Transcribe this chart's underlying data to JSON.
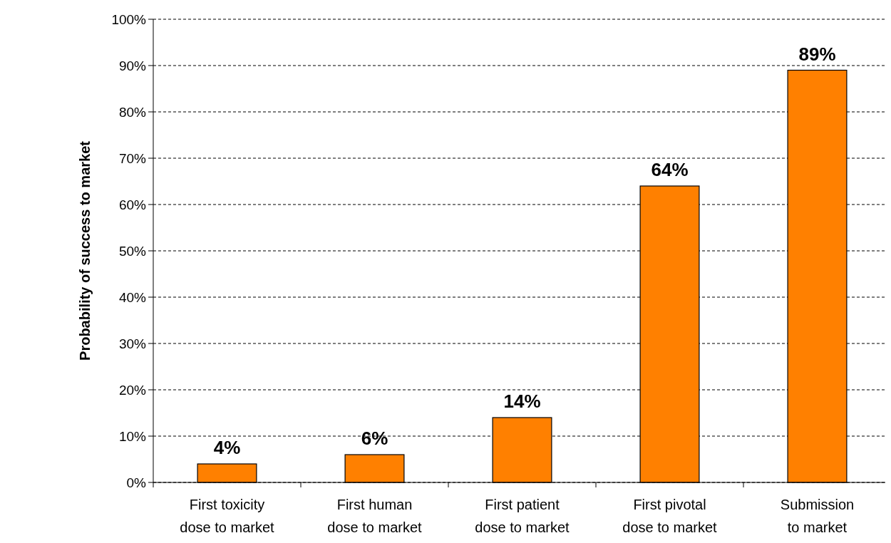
{
  "chart_data": {
    "type": "bar",
    "ylabel": "Probability of success to market",
    "categories": [
      "First toxicity\ndose to market",
      "First human\ndose to market",
      "First patient\ndose to market",
      "First pivotal\ndose to market",
      "Submission\nto market"
    ],
    "values": [
      4,
      6,
      14,
      64,
      89
    ],
    "value_labels": [
      "4%",
      "6%",
      "14%",
      "64%",
      "89%"
    ],
    "color": "#ff8000",
    "ylim": [
      0,
      100
    ],
    "yticks": [
      {
        "value": 0,
        "label": "0%"
      },
      {
        "value": 10,
        "label": "10%"
      },
      {
        "value": 20,
        "label": "20%"
      },
      {
        "value": 30,
        "label": "30%"
      },
      {
        "value": 40,
        "label": "40%"
      },
      {
        "value": 50,
        "label": "50%"
      },
      {
        "value": 60,
        "label": "60%"
      },
      {
        "value": 70,
        "label": "70%"
      },
      {
        "value": 80,
        "label": "80%"
      },
      {
        "value": 90,
        "label": "90%"
      },
      {
        "value": 100,
        "label": "100%"
      }
    ],
    "grid": "y"
  }
}
